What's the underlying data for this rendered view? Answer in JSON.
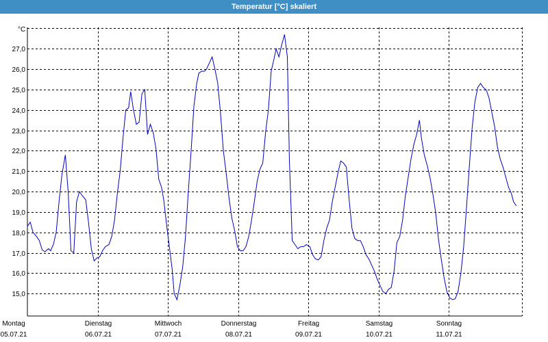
{
  "window": {
    "title": "Temperatur [°C] skaliert"
  },
  "colors": {
    "title_bar": "#3f8ec4",
    "series": "#0000c0",
    "grid": "#000000"
  },
  "chart_data": {
    "type": "line",
    "title": "Temperatur [°C] skaliert",
    "ylabel": "°C",
    "ylim": [
      14.0,
      28.0
    ],
    "yticks": [
      "27,0",
      "26,0",
      "25,0",
      "24,0",
      "23,0",
      "22,0",
      "21,0",
      "20,0",
      "19,0",
      "18,0",
      "17,0",
      "16,0",
      "15,0"
    ],
    "ytick_values": [
      27,
      26,
      25,
      24,
      23,
      22,
      21,
      20,
      19,
      18,
      17,
      16,
      15
    ],
    "xlim": [
      0,
      7.04
    ],
    "xticks": [
      {
        "day": "Montag",
        "date": "05.07.21",
        "x": 0
      },
      {
        "day": "Dienstag",
        "date": "06.07.21",
        "x": 1
      },
      {
        "day": "Mittwoch",
        "date": "07.07.21",
        "x": 2
      },
      {
        "day": "Donnerstag",
        "date": "08.07.21",
        "x": 3
      },
      {
        "day": "Freitag",
        "date": "09.07.21",
        "x": 4
      },
      {
        "day": "Samstag",
        "date": "10.07.21",
        "x": 5
      },
      {
        "day": "Sonntag",
        "date": "11.07.21",
        "x": 6
      }
    ],
    "grid": true,
    "series": [
      {
        "points": [
          [
            0.0,
            18.3
          ],
          [
            0.04,
            18.5
          ],
          [
            0.08,
            18.0
          ],
          [
            0.13,
            17.8
          ],
          [
            0.17,
            17.6
          ],
          [
            0.21,
            17.15
          ],
          [
            0.25,
            17.05
          ],
          [
            0.3,
            17.2
          ],
          [
            0.33,
            17.1
          ],
          [
            0.37,
            17.4
          ],
          [
            0.41,
            18.0
          ],
          [
            0.45,
            19.5
          ],
          [
            0.49,
            20.8
          ],
          [
            0.54,
            21.8
          ],
          [
            0.58,
            20.0
          ],
          [
            0.62,
            17.1
          ],
          [
            0.66,
            17.0
          ],
          [
            0.7,
            19.5
          ],
          [
            0.74,
            20.0
          ],
          [
            0.78,
            19.8
          ],
          [
            0.83,
            19.6
          ],
          [
            0.87,
            18.5
          ],
          [
            0.91,
            17.2
          ],
          [
            0.95,
            16.6
          ],
          [
            0.99,
            16.75
          ],
          [
            1.03,
            16.8
          ],
          [
            1.07,
            17.1
          ],
          [
            1.11,
            17.3
          ],
          [
            1.16,
            17.4
          ],
          [
            1.2,
            17.8
          ],
          [
            1.24,
            18.6
          ],
          [
            1.28,
            19.9
          ],
          [
            1.32,
            21.0
          ],
          [
            1.36,
            22.6
          ],
          [
            1.4,
            24.0
          ],
          [
            1.44,
            24.1
          ],
          [
            1.47,
            24.9
          ],
          [
            1.51,
            24.0
          ],
          [
            1.55,
            23.3
          ],
          [
            1.59,
            23.4
          ],
          [
            1.63,
            24.8
          ],
          [
            1.67,
            25.0
          ],
          [
            1.71,
            22.8
          ],
          [
            1.75,
            23.3
          ],
          [
            1.79,
            22.9
          ],
          [
            1.83,
            22.1
          ],
          [
            1.87,
            20.6
          ],
          [
            1.91,
            20.2
          ],
          [
            1.94,
            19.6
          ],
          [
            1.98,
            18.4
          ],
          [
            2.02,
            17.3
          ],
          [
            2.06,
            16.2
          ],
          [
            2.09,
            15.0
          ],
          [
            2.13,
            14.7
          ],
          [
            2.17,
            15.4
          ],
          [
            2.21,
            16.3
          ],
          [
            2.25,
            17.8
          ],
          [
            2.29,
            20.0
          ],
          [
            2.33,
            22.0
          ],
          [
            2.37,
            24.2
          ],
          [
            2.41,
            25.3
          ],
          [
            2.44,
            25.8
          ],
          [
            2.48,
            25.9
          ],
          [
            2.52,
            25.9
          ],
          [
            2.55,
            26.0
          ],
          [
            2.59,
            26.3
          ],
          [
            2.63,
            26.6
          ],
          [
            2.67,
            26.0
          ],
          [
            2.71,
            25.3
          ],
          [
            2.75,
            23.8
          ],
          [
            2.79,
            22.0
          ],
          [
            2.83,
            20.9
          ],
          [
            2.87,
            19.7
          ],
          [
            2.91,
            18.7
          ],
          [
            2.95,
            18.1
          ],
          [
            2.99,
            17.3
          ],
          [
            3.03,
            17.1
          ],
          [
            3.07,
            17.1
          ],
          [
            3.11,
            17.3
          ],
          [
            3.15,
            17.8
          ],
          [
            3.19,
            18.6
          ],
          [
            3.23,
            19.5
          ],
          [
            3.27,
            20.5
          ],
          [
            3.31,
            21.1
          ],
          [
            3.35,
            21.4
          ],
          [
            3.39,
            22.9
          ],
          [
            3.43,
            24.0
          ],
          [
            3.47,
            25.9
          ],
          [
            3.51,
            26.5
          ],
          [
            3.54,
            27.0
          ],
          [
            3.58,
            26.6
          ],
          [
            3.62,
            27.2
          ],
          [
            3.66,
            27.7
          ],
          [
            3.7,
            26.6
          ],
          [
            3.73,
            21.5
          ],
          [
            3.77,
            17.6
          ],
          [
            3.81,
            17.4
          ],
          [
            3.85,
            17.2
          ],
          [
            3.89,
            17.3
          ],
          [
            3.93,
            17.3
          ],
          [
            3.97,
            17.4
          ],
          [
            4.02,
            17.3
          ],
          [
            4.06,
            16.9
          ],
          [
            4.1,
            16.7
          ],
          [
            4.14,
            16.65
          ],
          [
            4.18,
            16.8
          ],
          [
            4.22,
            17.6
          ],
          [
            4.26,
            18.2
          ],
          [
            4.3,
            18.6
          ],
          [
            4.34,
            19.5
          ],
          [
            4.38,
            20.2
          ],
          [
            4.42,
            20.9
          ],
          [
            4.46,
            21.5
          ],
          [
            4.5,
            21.4
          ],
          [
            4.54,
            21.2
          ],
          [
            4.58,
            19.6
          ],
          [
            4.62,
            18.2
          ],
          [
            4.66,
            17.7
          ],
          [
            4.7,
            17.6
          ],
          [
            4.74,
            17.6
          ],
          [
            4.78,
            17.3
          ],
          [
            4.82,
            16.9
          ],
          [
            4.86,
            16.7
          ],
          [
            4.9,
            16.4
          ],
          [
            4.94,
            16.1
          ],
          [
            4.98,
            15.7
          ],
          [
            5.02,
            15.4
          ],
          [
            5.06,
            15.1
          ],
          [
            5.1,
            15.0
          ],
          [
            5.14,
            15.2
          ],
          [
            5.18,
            15.3
          ],
          [
            5.22,
            16.1
          ],
          [
            5.26,
            17.5
          ],
          [
            5.3,
            17.8
          ],
          [
            5.34,
            18.6
          ],
          [
            5.38,
            19.8
          ],
          [
            5.42,
            20.7
          ],
          [
            5.46,
            21.6
          ],
          [
            5.5,
            22.3
          ],
          [
            5.54,
            22.8
          ],
          [
            5.58,
            23.5
          ],
          [
            5.61,
            22.6
          ],
          [
            5.65,
            21.8
          ],
          [
            5.69,
            21.3
          ],
          [
            5.73,
            20.7
          ],
          [
            5.77,
            19.9
          ],
          [
            5.81,
            19.0
          ],
          [
            5.85,
            17.7
          ],
          [
            5.89,
            16.7
          ],
          [
            5.93,
            15.8
          ],
          [
            5.97,
            15.1
          ],
          [
            6.01,
            14.8
          ],
          [
            6.05,
            14.7
          ],
          [
            6.09,
            14.75
          ],
          [
            6.13,
            15.1
          ],
          [
            6.17,
            16.0
          ],
          [
            6.21,
            17.3
          ],
          [
            6.25,
            19.2
          ],
          [
            6.29,
            21.2
          ],
          [
            6.33,
            23.1
          ],
          [
            6.37,
            24.4
          ],
          [
            6.41,
            25.1
          ],
          [
            6.45,
            25.3
          ],
          [
            6.49,
            25.1
          ],
          [
            6.53,
            25.0
          ],
          [
            6.57,
            24.6
          ],
          [
            6.61,
            23.9
          ],
          [
            6.65,
            23.2
          ],
          [
            6.69,
            22.2
          ],
          [
            6.73,
            21.6
          ],
          [
            6.77,
            21.2
          ],
          [
            6.81,
            20.7
          ],
          [
            6.85,
            20.2
          ],
          [
            6.89,
            19.9
          ],
          [
            6.92,
            19.5
          ],
          [
            6.96,
            19.3
          ]
        ]
      }
    ]
  }
}
